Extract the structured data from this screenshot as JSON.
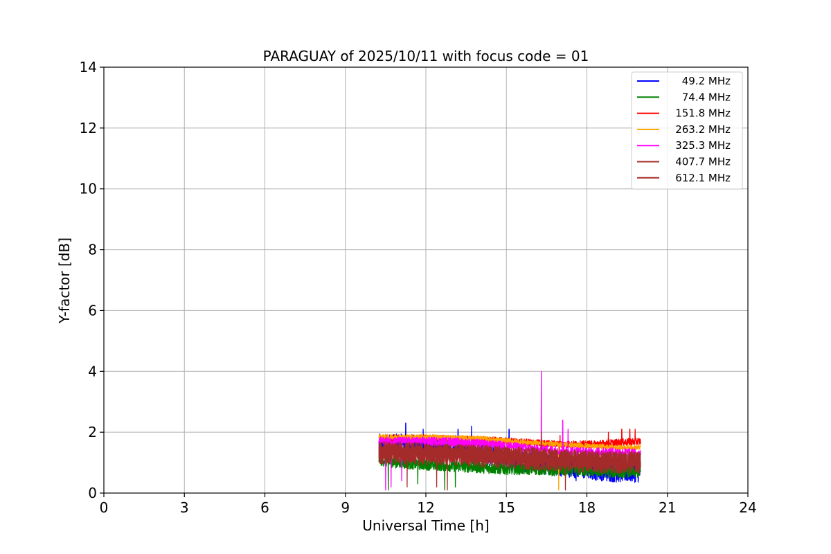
{
  "chart_data": {
    "type": "line",
    "title": "PARAGUAY of 2025/10/11 with focus code = 01",
    "xlabel": "Universal Time [h]",
    "ylabel": "Y-factor [dB]",
    "xlim": [
      0,
      24
    ],
    "ylim": [
      0,
      14
    ],
    "xticks": [
      0,
      3,
      6,
      9,
      12,
      15,
      18,
      21,
      24
    ],
    "yticks": [
      0,
      2,
      4,
      6,
      8,
      10,
      12,
      14
    ],
    "grid": true,
    "legend_position": "top-right",
    "data_range_hours": [
      10.25,
      20.0
    ],
    "series": [
      {
        "name": "49.2 MHz",
        "color": "#0000ff",
        "x": [
          10.25,
          11.0,
          12.0,
          13.0,
          14.0,
          15.0,
          16.0,
          17.0,
          18.0,
          19.0,
          20.0
        ],
        "values": [
          1.6,
          1.6,
          1.55,
          1.45,
          1.3,
          1.15,
          1.0,
          0.9,
          0.8,
          0.7,
          0.7
        ],
        "spread": 0.35,
        "spikes": [
          [
            11.25,
            2.3
          ],
          [
            11.9,
            2.1
          ],
          [
            13.2,
            2.1
          ],
          [
            13.7,
            2.2
          ],
          [
            15.1,
            2.1
          ],
          [
            17.6,
            0.4
          ],
          [
            19.0,
            0.5
          ]
        ]
      },
      {
        "name": "74.4 MHz",
        "color": "#008000",
        "x": [
          10.25,
          11.0,
          12.0,
          13.0,
          14.0,
          15.0,
          16.0,
          17.0,
          18.0,
          19.0,
          20.0
        ],
        "values": [
          1.1,
          1.0,
          0.95,
          0.9,
          0.85,
          0.8,
          0.8,
          0.75,
          0.75,
          0.7,
          0.7
        ],
        "spread": 0.2,
        "spikes": [
          [
            10.6,
            0.1
          ],
          [
            11.7,
            0.3
          ],
          [
            12.7,
            0.1
          ],
          [
            13.1,
            0.2
          ]
        ]
      },
      {
        "name": "151.8 MHz",
        "color": "#ff0000",
        "x": [
          10.25,
          11.0,
          12.0,
          13.0,
          14.0,
          15.0,
          16.0,
          17.0,
          18.0,
          19.0,
          20.0
        ],
        "values": [
          1.8,
          1.8,
          1.8,
          1.78,
          1.75,
          1.7,
          1.65,
          1.6,
          1.6,
          1.65,
          1.7
        ],
        "spread": 0.12,
        "spikes": [
          [
            18.8,
            2.0
          ],
          [
            19.3,
            2.1
          ],
          [
            19.6,
            2.1
          ],
          [
            19.8,
            2.1
          ],
          [
            17.0,
            1.9
          ]
        ]
      },
      {
        "name": "263.2 MHz",
        "color": "#ffa500",
        "x": [
          10.25,
          11.0,
          12.0,
          13.0,
          14.0,
          15.0,
          16.0,
          17.0,
          18.0,
          19.0,
          20.0
        ],
        "values": [
          1.85,
          1.85,
          1.85,
          1.82,
          1.8,
          1.72,
          1.65,
          1.6,
          1.55,
          1.5,
          1.5
        ],
        "spread": 0.08,
        "spikes": [
          [
            16.95,
            0.1
          ]
        ]
      },
      {
        "name": "325.3 MHz",
        "color": "#ff00ff",
        "x": [
          10.25,
          11.0,
          12.0,
          13.0,
          14.0,
          15.0,
          16.0,
          17.0,
          18.0,
          19.0,
          20.0
        ],
        "values": [
          1.7,
          1.7,
          1.7,
          1.68,
          1.62,
          1.55,
          1.45,
          1.4,
          1.35,
          1.35,
          1.3
        ],
        "spread": 0.15,
        "spikes": [
          [
            16.3,
            4.0
          ],
          [
            17.1,
            2.4
          ],
          [
            17.3,
            2.1
          ],
          [
            10.5,
            0.1
          ],
          [
            10.7,
            0.2
          ],
          [
            11.1,
            0.4
          ]
        ]
      },
      {
        "name": "407.7 MHz",
        "color": "#a52a2a",
        "x": [
          10.25,
          11.0,
          12.0,
          13.0,
          14.0,
          15.0,
          16.0,
          17.0,
          18.0,
          19.0,
          20.0
        ],
        "values": [
          1.3,
          1.3,
          1.25,
          1.25,
          1.2,
          1.15,
          1.1,
          1.05,
          1.0,
          1.0,
          1.0
        ],
        "spread": 0.35,
        "spikes": [
          [
            12.4,
            0.2
          ],
          [
            12.8,
            0.1
          ],
          [
            17.2,
            0.1
          ]
        ]
      },
      {
        "name": "612.1 MHz",
        "color": "#a52a2a",
        "x": [
          10.25,
          11.0,
          12.0,
          13.0,
          14.0,
          15.0,
          16.0,
          17.0,
          18.0,
          19.0,
          20.0
        ],
        "values": [
          1.4,
          1.4,
          1.35,
          1.3,
          1.3,
          1.25,
          1.2,
          1.15,
          1.1,
          1.1,
          1.05
        ],
        "spread": 0.3,
        "spikes": [
          [
            16.3,
            2.0
          ],
          [
            11.3,
            0.2
          ]
        ]
      }
    ]
  }
}
